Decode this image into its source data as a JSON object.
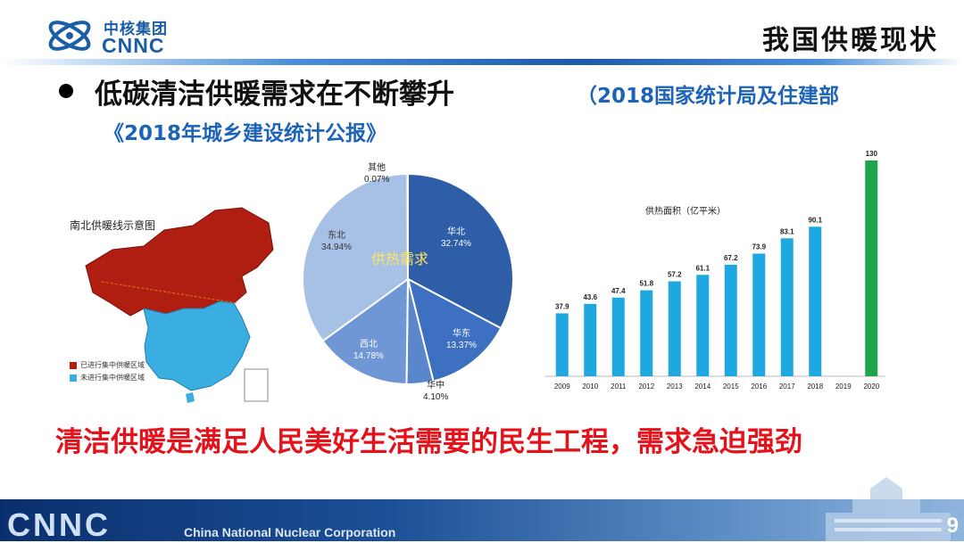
{
  "header": {
    "logo_cn": "中核集团",
    "logo_en": "CNNC",
    "slide_title": "我国供暖现状"
  },
  "headline": {
    "text": "低碳清洁供暖需求在不断攀升",
    "source_line1": "（2018国家统计局及住建部",
    "source_line2": "《2018年城乡建设统计公报》"
  },
  "map": {
    "title": "南北供暖线示意图",
    "legend": [
      {
        "label": "已进行集中供暖区域",
        "color": "#b01e12"
      },
      {
        "label": "未进行集中供暖区域",
        "color": "#3aaee0"
      }
    ]
  },
  "pie_chart": {
    "overlay_label": "供热需求",
    "slices": [
      {
        "name": "华北",
        "value": "32.74%",
        "pct": 32.74,
        "color": "#2e5ea8"
      },
      {
        "name": "华东",
        "value": "13.37%",
        "pct": 13.37,
        "color": "#3d70c0"
      },
      {
        "name": "华中",
        "value": "4.10%",
        "pct": 4.1,
        "color": "#5a86cc"
      },
      {
        "name": "西北",
        "value": "14.78%",
        "pct": 14.78,
        "color": "#6f97d6"
      },
      {
        "name": "东北",
        "value": "34.94%",
        "pct": 34.94,
        "color": "#a7c0e6"
      },
      {
        "name": "其他",
        "value": "0.07%",
        "pct": 0.07,
        "color": "#c9d8f0"
      }
    ]
  },
  "chart_data": {
    "type": "bar",
    "title": "供热面积（亿平米）",
    "categories": [
      "2009",
      "2010",
      "2011",
      "2012",
      "2013",
      "2014",
      "2015",
      "2016",
      "2017",
      "2018",
      "2019",
      "2020"
    ],
    "values": [
      37.9,
      43.6,
      47.4,
      51.8,
      57.2,
      61.1,
      67.2,
      73.9,
      83.1,
      90.1,
      null,
      130
    ],
    "labels": [
      "37.9",
      "43.6",
      "47.4",
      "51.8",
      "57.2",
      "61.1",
      "67.2",
      "73.9",
      "83.1",
      "90.1",
      "",
      "130"
    ],
    "colors": {
      "default": "#1fa8e0",
      "highlight": "#1fa44b"
    },
    "highlight_index": 11,
    "ylim": [
      0,
      130
    ]
  },
  "tagline": "清洁供暖是满足人民美好生活需要的民生工程，需求急迫强劲",
  "footer": {
    "brand": "CNNC",
    "corporation": "China National Nuclear Corporation",
    "page_number": "9"
  }
}
